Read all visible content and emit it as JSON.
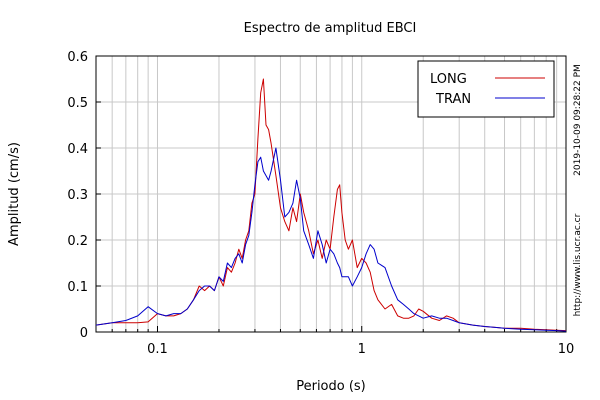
{
  "chart_data": {
    "type": "line",
    "title": "Espectro de amplitud EBCI",
    "xlabel": "Periodo (s)",
    "ylabel": "Amplitud (cm/s)",
    "xscale": "log",
    "xlim": [
      0.05,
      10
    ],
    "ylim": [
      0,
      0.6
    ],
    "xtick_labels": [
      "0.1",
      "1",
      "10"
    ],
    "ytick_labels": [
      "0",
      "0.1",
      "0.2",
      "0.3",
      "0.4",
      "0.5",
      "0.6"
    ],
    "grid": true,
    "legend_position": "top-right",
    "side_texts": [
      "2019-10-09 09:28:22 PM",
      "http://www.lis.ucr.ac.cr"
    ],
    "series": [
      {
        "name": "LONG",
        "color": "#cc0000",
        "x": [
          0.05,
          0.06,
          0.07,
          0.08,
          0.09,
          0.1,
          0.11,
          0.12,
          0.13,
          0.14,
          0.15,
          0.16,
          0.17,
          0.18,
          0.19,
          0.2,
          0.21,
          0.22,
          0.23,
          0.24,
          0.25,
          0.26,
          0.27,
          0.28,
          0.29,
          0.3,
          0.31,
          0.32,
          0.33,
          0.34,
          0.35,
          0.36,
          0.38,
          0.4,
          0.42,
          0.44,
          0.46,
          0.48,
          0.5,
          0.52,
          0.55,
          0.58,
          0.61,
          0.64,
          0.67,
          0.7,
          0.73,
          0.76,
          0.78,
          0.8,
          0.83,
          0.86,
          0.9,
          0.95,
          1.0,
          1.05,
          1.1,
          1.15,
          1.2,
          1.3,
          1.4,
          1.5,
          1.6,
          1.7,
          1.8,
          1.9,
          2.0,
          2.2,
          2.4,
          2.6,
          2.8,
          3.0,
          3.5,
          4.0,
          4.5,
          5.0,
          6.0,
          7.0,
          8.0,
          9.0,
          10.0
        ],
        "y": [
          0.015,
          0.02,
          0.02,
          0.02,
          0.022,
          0.04,
          0.035,
          0.035,
          0.04,
          0.05,
          0.07,
          0.1,
          0.09,
          0.1,
          0.09,
          0.12,
          0.1,
          0.14,
          0.13,
          0.15,
          0.18,
          0.16,
          0.2,
          0.22,
          0.28,
          0.3,
          0.42,
          0.52,
          0.55,
          0.45,
          0.44,
          0.41,
          0.34,
          0.27,
          0.24,
          0.22,
          0.27,
          0.24,
          0.3,
          0.26,
          0.22,
          0.17,
          0.2,
          0.16,
          0.2,
          0.18,
          0.25,
          0.31,
          0.32,
          0.26,
          0.2,
          0.18,
          0.2,
          0.14,
          0.16,
          0.15,
          0.13,
          0.09,
          0.07,
          0.05,
          0.06,
          0.035,
          0.03,
          0.03,
          0.035,
          0.05,
          0.045,
          0.03,
          0.025,
          0.035,
          0.03,
          0.02,
          0.015,
          0.012,
          0.01,
          0.008,
          0.008,
          0.006,
          0.005,
          0.004,
          0.003
        ]
      },
      {
        "name": "TRAN",
        "color": "#0000cc",
        "x": [
          0.05,
          0.06,
          0.07,
          0.08,
          0.09,
          0.1,
          0.11,
          0.12,
          0.13,
          0.14,
          0.15,
          0.16,
          0.17,
          0.18,
          0.19,
          0.2,
          0.21,
          0.22,
          0.23,
          0.24,
          0.25,
          0.26,
          0.27,
          0.28,
          0.29,
          0.3,
          0.31,
          0.32,
          0.33,
          0.34,
          0.35,
          0.36,
          0.38,
          0.4,
          0.42,
          0.44,
          0.46,
          0.48,
          0.5,
          0.52,
          0.55,
          0.58,
          0.61,
          0.64,
          0.67,
          0.7,
          0.73,
          0.76,
          0.78,
          0.8,
          0.83,
          0.86,
          0.9,
          0.95,
          1.0,
          1.05,
          1.1,
          1.15,
          1.2,
          1.3,
          1.4,
          1.5,
          1.6,
          1.7,
          1.8,
          1.9,
          2.0,
          2.2,
          2.4,
          2.6,
          2.8,
          3.0,
          3.5,
          4.0,
          4.5,
          5.0,
          6.0,
          7.0,
          8.0,
          9.0,
          10.0
        ],
        "y": [
          0.015,
          0.02,
          0.025,
          0.035,
          0.055,
          0.04,
          0.035,
          0.04,
          0.04,
          0.05,
          0.07,
          0.09,
          0.1,
          0.1,
          0.09,
          0.12,
          0.11,
          0.15,
          0.14,
          0.16,
          0.17,
          0.15,
          0.19,
          0.21,
          0.26,
          0.32,
          0.37,
          0.38,
          0.35,
          0.34,
          0.33,
          0.35,
          0.4,
          0.33,
          0.25,
          0.26,
          0.28,
          0.33,
          0.29,
          0.22,
          0.19,
          0.16,
          0.22,
          0.19,
          0.15,
          0.18,
          0.17,
          0.15,
          0.14,
          0.12,
          0.12,
          0.12,
          0.1,
          0.12,
          0.14,
          0.17,
          0.19,
          0.18,
          0.15,
          0.14,
          0.1,
          0.07,
          0.06,
          0.05,
          0.04,
          0.035,
          0.03,
          0.035,
          0.03,
          0.03,
          0.025,
          0.02,
          0.015,
          0.012,
          0.01,
          0.008,
          0.006,
          0.005,
          0.004,
          0.003,
          0.002
        ]
      }
    ]
  }
}
